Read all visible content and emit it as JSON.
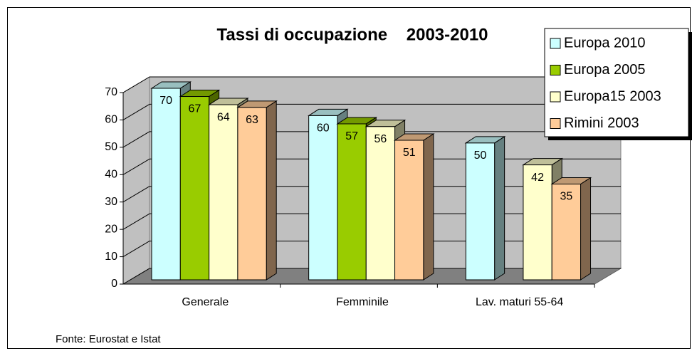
{
  "chart_data": {
    "type": "bar3d",
    "title": "Tassi di occupazione    2003-2010",
    "footnote": "Fonte: Eurostat e Istat",
    "categories": [
      "Generale",
      "Femminile",
      "Lav. maturi 55-64"
    ],
    "series": [
      {
        "name": "Europa 2010",
        "color": "#ccffff",
        "values": [
          70,
          60,
          50
        ]
      },
      {
        "name": "Europa 2005",
        "color": "#99cc00",
        "values": [
          67,
          57,
          null
        ]
      },
      {
        "name": "Europa15 2003",
        "color": "#ffffcc",
        "values": [
          64,
          56,
          42
        ]
      },
      {
        "name": "Rimini 2003",
        "color": "#ffcc99",
        "values": [
          63,
          51,
          35
        ]
      }
    ],
    "ylim": [
      0,
      70
    ],
    "yticks": [
      0,
      10,
      20,
      30,
      40,
      50,
      60,
      70
    ],
    "grid": true,
    "legend": "right"
  }
}
